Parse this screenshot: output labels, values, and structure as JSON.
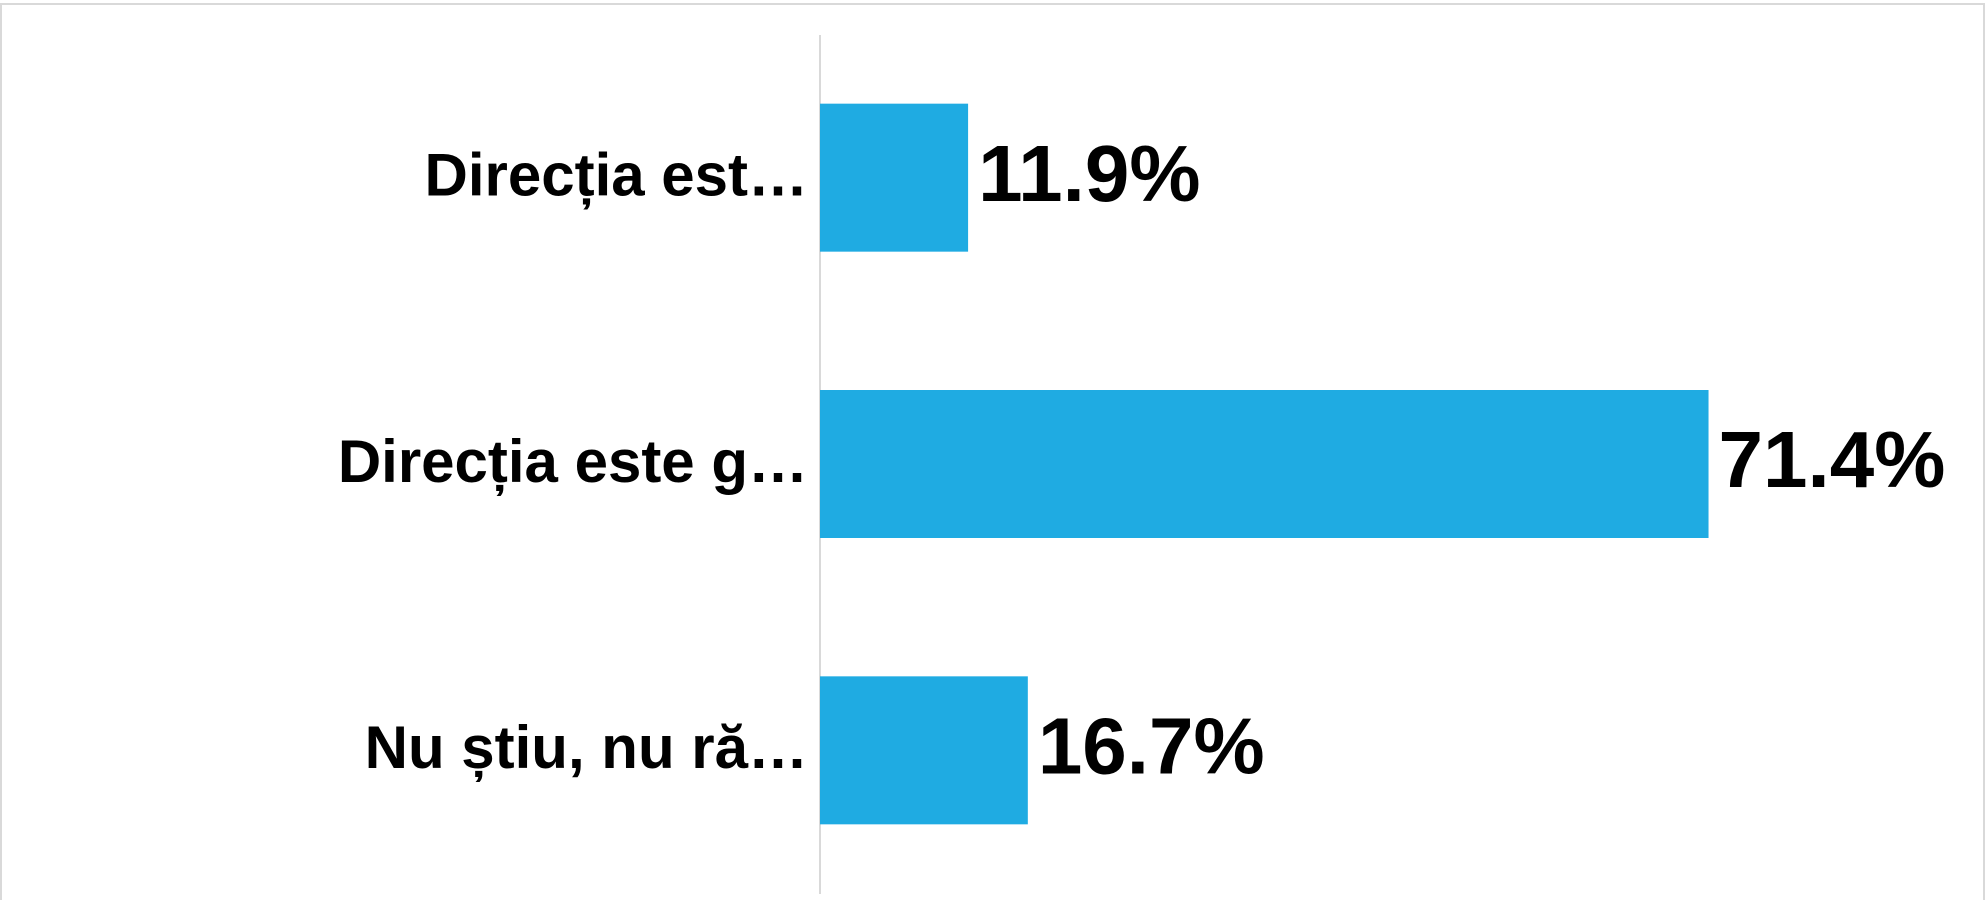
{
  "chart_data": {
    "type": "bar",
    "orientation": "horizontal",
    "categories": [
      "Direcția est…",
      "Direcția este g…",
      "Nu știu, nu ră…"
    ],
    "values": [
      11.9,
      71.4,
      16.7
    ],
    "value_labels": [
      "11.9%",
      "71.4%",
      "16.7%"
    ],
    "color": "#1fabe2",
    "xlim": [
      0,
      90
    ]
  }
}
